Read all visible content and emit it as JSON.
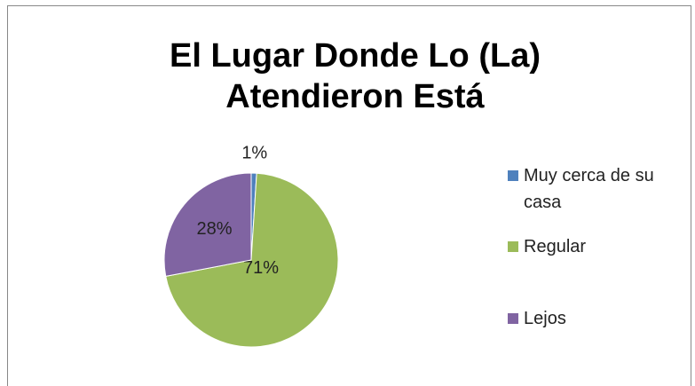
{
  "chart_data": {
    "type": "pie",
    "title": "El Lugar Donde Lo (La) Atendieron Está",
    "categories": [
      "Muy cerca de su casa",
      "Regular",
      "Lejos"
    ],
    "values": [
      1,
      71,
      28
    ],
    "value_labels": [
      "1%",
      "71%",
      "28%"
    ],
    "colors": [
      "#4f81bd",
      "#9bbb59",
      "#8064a2"
    ],
    "legend": "right"
  }
}
